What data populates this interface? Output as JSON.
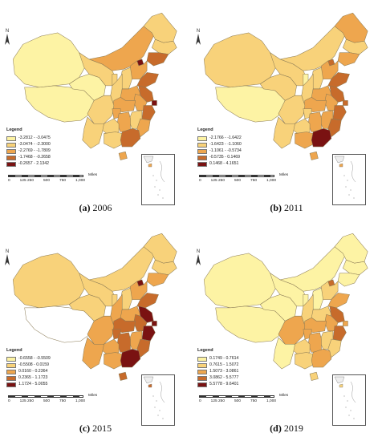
{
  "colors": {
    "c1": "#fdf3a4",
    "c2": "#f8d27a",
    "c3": "#eea64e",
    "c4": "#c76b2b",
    "c5": "#7a1212",
    "nodata": "#ffffff",
    "border": "#8a7a55"
  },
  "common": {
    "north": "N",
    "legend_title": "Legend",
    "scale_unit": "Miles",
    "scale_ticks": [
      "0",
      "125 250",
      "500",
      "750",
      "1,000"
    ]
  },
  "panels": [
    {
      "label": "(a)",
      "year": "2006",
      "legend": [
        "-3.2812 - -3.0475",
        "-3.0474 - -2.3000",
        "-2.2769 - -1.7809",
        "-1.7468 - -0.2658",
        "-0.2657 - 2.1342"
      ],
      "fill": {
        "xinjiang": "c1",
        "tibet": "c1",
        "qinghai": "c1",
        "gansu": "c2",
        "neimenggu": "c3",
        "heilongjiang": "c2",
        "jilin": "c2",
        "liaoning": "c4",
        "beijing": "c5",
        "hebei": "c3",
        "shanxi": "c2",
        "shandong": "c4",
        "henan": "c3",
        "shaanxi": "c2",
        "ningxia": "c2",
        "sichuan": "c2",
        "chongqing": "c3",
        "hubei": "c3",
        "anhui": "c3",
        "jiangsu": "c4",
        "shanghai": "c5",
        "zhejiang": "c4",
        "jiangxi": "c2",
        "hunan": "c3",
        "guizhou": "c2",
        "yunnan": "c2",
        "guangxi": "c2",
        "guangdong": "c4",
        "fujian": "c3",
        "hainan": "c3"
      }
    },
    {
      "label": "(b)",
      "year": "2011",
      "legend": [
        "-2.1766 - -1.6422",
        "-1.6423 - -1.1060",
        "-1.1061 - -0.5734",
        "-0.5735 - 0.1469",
        "0.1468 - 4.1651"
      ],
      "fill": {
        "xinjiang": "c2",
        "tibet": "c1",
        "qinghai": "c2",
        "gansu": "c2",
        "neimenggu": "c2",
        "heilongjiang": "c3",
        "jilin": "c2",
        "liaoning": "c3",
        "beijing": "c4",
        "hebei": "c3",
        "shanxi": "c2",
        "shandong": "c4",
        "henan": "c3",
        "shaanxi": "c2",
        "ningxia": "c1",
        "sichuan": "c2",
        "chongqing": "c2",
        "hubei": "c3",
        "anhui": "c3",
        "jiangsu": "c4",
        "shanghai": "c4",
        "zhejiang": "c4",
        "jiangxi": "c3",
        "hunan": "c3",
        "guizhou": "c2",
        "yunnan": "c2",
        "guangxi": "c3",
        "guangdong": "c5",
        "fujian": "c4",
        "hainan": "c3"
      }
    },
    {
      "label": "(c)",
      "year": "2015",
      "legend": [
        "-0.6558 - -0.5509",
        "-0.5508 - 0.0159",
        "0.0160 - 0.2364",
        "0.2365 - 1.1723",
        "1.1724 - 5.0055"
      ],
      "fill": {
        "xinjiang": "c2",
        "tibet": "nodata",
        "qinghai": "c2",
        "gansu": "c2",
        "neimenggu": "c2",
        "heilongjiang": "c2",
        "jilin": "c2",
        "liaoning": "c3",
        "beijing": "c5",
        "hebei": "c3",
        "shanxi": "c2",
        "shandong": "c4",
        "henan": "c3",
        "shaanxi": "c3",
        "ningxia": "c2",
        "sichuan": "c3",
        "chongqing": "c4",
        "hubei": "c4",
        "anhui": "c4",
        "jiangsu": "c5",
        "shanghai": "c5",
        "zhejiang": "c5",
        "jiangxi": "c3",
        "hunan": "c4",
        "guizhou": "c3",
        "yunnan": "c3",
        "guangxi": "c3",
        "guangdong": "c5",
        "fujian": "c4",
        "hainan": "c4"
      }
    },
    {
      "label": "(d)",
      "year": "2019",
      "legend": [
        "0.1749 - 0.7614",
        "0.7615 - 1.5072",
        "1.5073 - 3.0861",
        "3.0862 - 5.5777",
        "5.5778 - 9.6401"
      ],
      "fill": {
        "xinjiang": "c1",
        "tibet": "c1",
        "qinghai": "c1",
        "gansu": "c1",
        "neimenggu": "c1",
        "heilongjiang": "c1",
        "jilin": "c1",
        "liaoning": "c1",
        "beijing": "c4",
        "hebei": "c2",
        "shanxi": "c1",
        "shandong": "c3",
        "henan": "c2",
        "shaanxi": "c2",
        "ningxia": "c1",
        "sichuan": "c3",
        "chongqing": "c3",
        "hubei": "c3",
        "anhui": "c3",
        "jiangsu": "c4",
        "shanghai": "c3",
        "zhejiang": "c4",
        "jiangxi": "c2",
        "hunan": "c3",
        "guizhou": "c2",
        "yunnan": "c1",
        "guangxi": "c2",
        "guangdong": "c3",
        "fujian": "c2",
        "hainan": "c2"
      }
    }
  ]
}
